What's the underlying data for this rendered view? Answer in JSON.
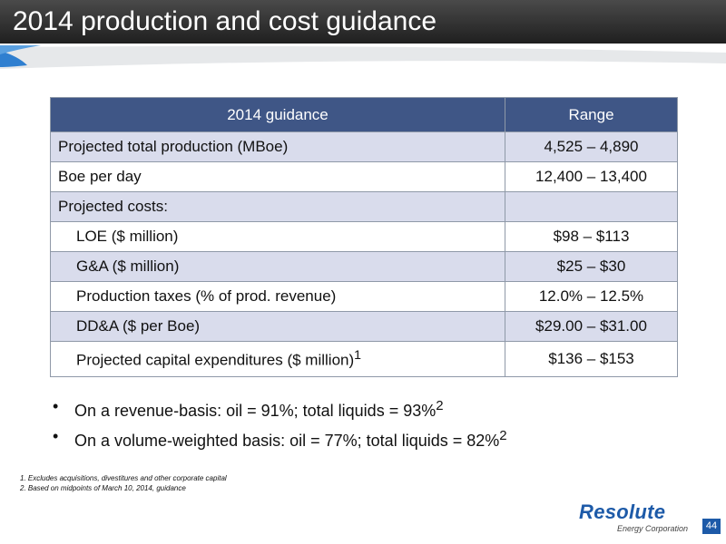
{
  "slide": {
    "title": "2014 production and cost guidance",
    "page_number": "44"
  },
  "table": {
    "headers": [
      "2014 guidance",
      "Range"
    ],
    "rows": [
      {
        "label": "Projected total production (MBoe)",
        "value": "4,525 – 4,890"
      },
      {
        "label": "Boe per day",
        "value": "12,400 – 13,400"
      },
      {
        "label": "Projected costs:",
        "value": ""
      },
      {
        "label": "LOE ($ million)",
        "value": "$98 – $113"
      },
      {
        "label": "G&A ($ million)",
        "value": "$25 – $30"
      },
      {
        "label": "Production taxes (% of prod. revenue)",
        "value": "12.0% – 12.5%"
      },
      {
        "label": "DD&A ($ per Boe)",
        "value": "$29.00 – $31.00"
      },
      {
        "label": "Projected capital expenditures ($ million)",
        "superscript": "1",
        "value": "$136 – $153"
      }
    ]
  },
  "bullets": [
    {
      "text": "On a revenue-basis: oil = 91%; total liquids = 93%",
      "superscript": "2"
    },
    {
      "text": "On a volume-weighted basis: oil = 77%; total liquids = 82%",
      "superscript": "2"
    }
  ],
  "footnotes": [
    "1.  Excludes acquisitions, divestitures and other corporate capital",
    "2.  Based on midpoints of March 10, 2014, guidance"
  ],
  "logo": {
    "name": "Resolute",
    "subtitle": "Energy Corporation"
  },
  "colors": {
    "header_bg": "#2b2b2b",
    "table_header": "#3f5686",
    "table_shade": "#d9dcec",
    "brand_blue": "#1d5aa8"
  }
}
